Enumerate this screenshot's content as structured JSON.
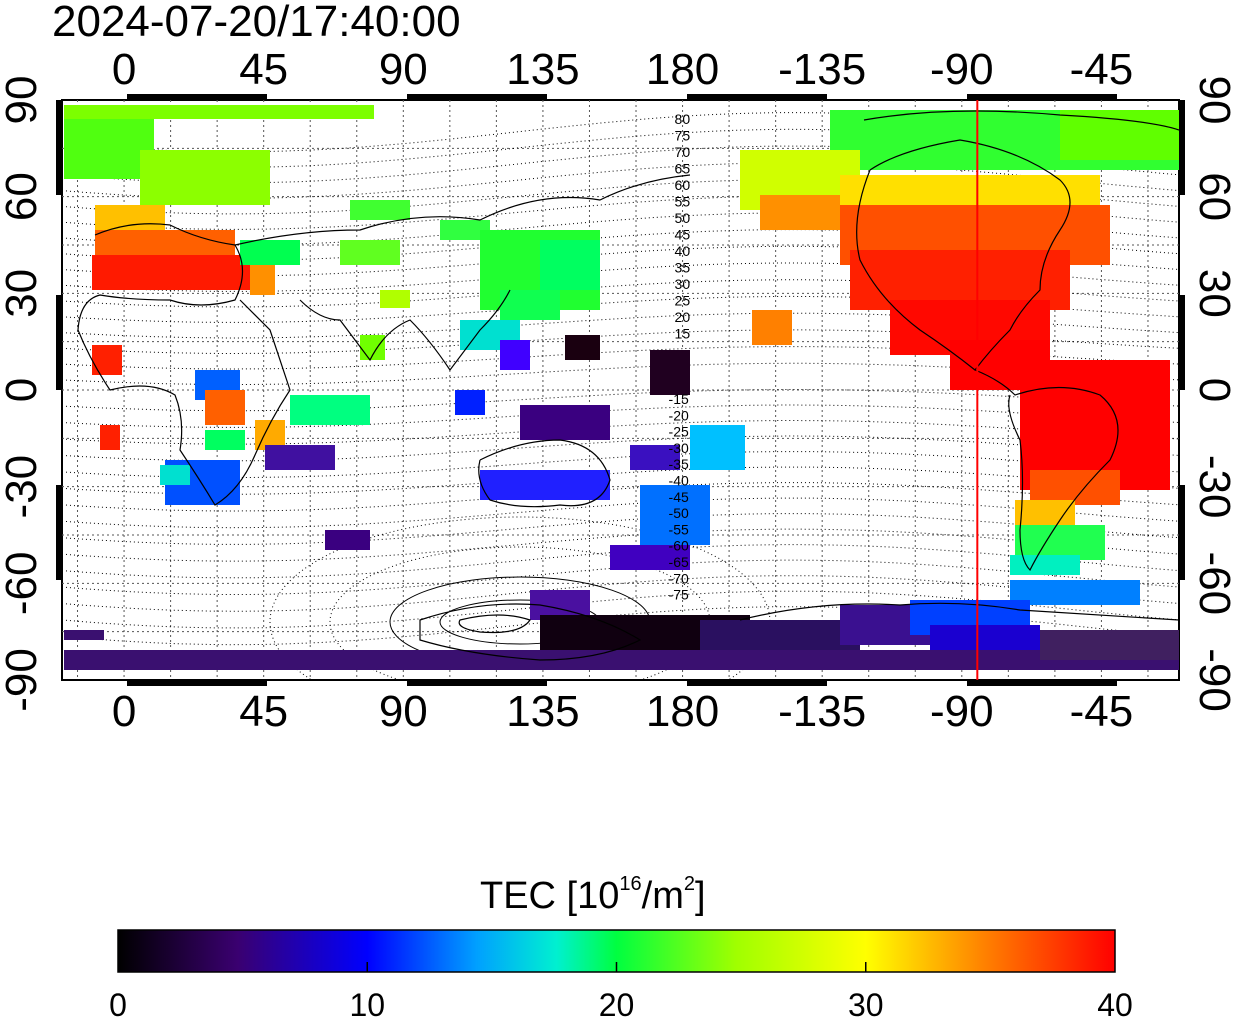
{
  "timestamp": "2024-07-20/17:40:00",
  "colorbar": {
    "label_main": "TEC  [10",
    "label_sup1": "16",
    "label_mid": "/m",
    "label_sup2": "2",
    "label_end": "]",
    "ticks": [
      "0",
      "10",
      "20",
      "30",
      "40"
    ],
    "min": 0,
    "max": 40
  },
  "map": {
    "top_lon_ticks": [
      "0",
      "45",
      "90",
      "135",
      "180",
      "-135",
      "-90",
      "-45"
    ],
    "bottom_lon_ticks": [
      "0",
      "45",
      "90",
      "135",
      "180",
      "-135",
      "-90",
      "-45"
    ],
    "left_lat_ticks": [
      "90",
      "60",
      "30",
      "0",
      "-30",
      "-60",
      "-90"
    ],
    "right_lat_ticks": [
      "90",
      "60",
      "30",
      "0",
      "-30",
      "-60",
      "-90"
    ],
    "magnetic_lat_north": [
      "80",
      "75",
      "70",
      "65",
      "60",
      "55",
      "50",
      "45",
      "40",
      "35",
      "30",
      "25",
      "20",
      "15"
    ],
    "magnetic_lat_south": [
      "-15",
      "-20",
      "-25",
      "-30",
      "-35",
      "-40",
      "-45",
      "-50",
      "-55",
      "-60",
      "-65",
      "-70",
      "-75"
    ],
    "terminator_color": "#ff0000",
    "terminator_lon": -85
  }
}
